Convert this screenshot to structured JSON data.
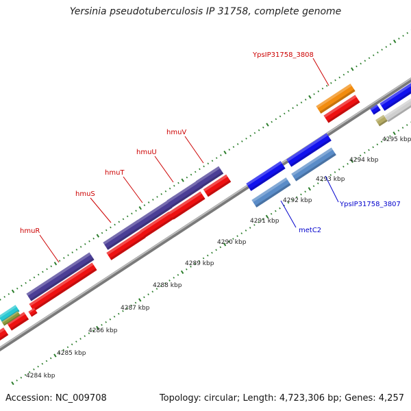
{
  "title": "Yersinia pseudotuberculosis IP 31758, complete genome",
  "footer": {
    "accession": "Accession: NC_009708",
    "summary": "Topology: circular; Length: 4,723,306 bp; Genes: 4,257"
  },
  "colors": {
    "background": "#ffffff",
    "backbone": "#8c8c8c",
    "tick": "#2a7d2a",
    "forward_label": "#cc0000",
    "reverse_label": "#0000cc",
    "cds_red": "#ee1111",
    "cds_blue": "#1111ee",
    "hmu_purple": "#4b3e96",
    "steel_blue": "#5a8cc8",
    "orange": "#f28c0f",
    "cyan": "#28c8d2",
    "olive": "#8c9a3c",
    "khaki": "#b4aa64",
    "light_grey": "#cfcfcf"
  },
  "scale_labels": [
    "4284 kbp",
    "4285 kbp",
    "4286 kbp",
    "4287 kbp",
    "4288 kbp",
    "4289 kbp",
    "4290 kbp",
    "4291 kbp",
    "4292 kbp",
    "4293 kbp",
    "4294 kbp",
    "4295 kbp"
  ],
  "gene_labels": {
    "hmuR": "hmuR",
    "hmuS": "hmuS",
    "hmuT": "hmuT",
    "hmuU": "hmuU",
    "hmuV": "hmuV",
    "ypsip3808": "YpsIP31758_3808",
    "metC2": "metC2",
    "ypsip3807": "YpsIP31758_3807"
  }
}
